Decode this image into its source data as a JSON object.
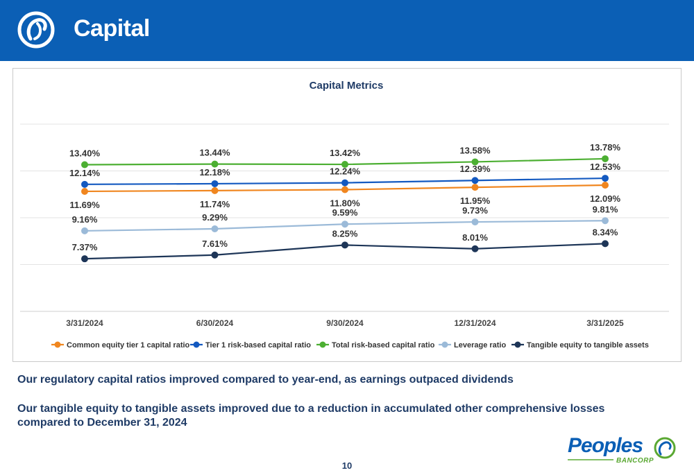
{
  "header": {
    "title": "Capital"
  },
  "chart_data": {
    "type": "line",
    "title": "Capital Metrics",
    "categories": [
      "3/31/2024",
      "6/30/2024",
      "9/30/2024",
      "12/31/2024",
      "3/31/2025"
    ],
    "ylim": [
      4,
      16
    ],
    "grid": true,
    "legend_position": "bottom",
    "series": [
      {
        "name": "Common equity tier 1 capital ratio",
        "color": "#f0861f",
        "values": [
          11.69,
          11.74,
          11.8,
          11.95,
          12.09
        ],
        "labels": [
          "11.69%",
          "11.74%",
          "11.80%",
          "11.95%",
          "12.09%"
        ],
        "label_pos": "below"
      },
      {
        "name": "Tier 1 risk-based capital ratio",
        "color": "#1359c0",
        "values": [
          12.14,
          12.18,
          12.24,
          12.39,
          12.53
        ],
        "labels": [
          "12.14%",
          "12.18%",
          "12.24%",
          "12.39%",
          "12.53%"
        ],
        "label_pos": "above"
      },
      {
        "name": "Total risk-based capital ratio",
        "color": "#4caf32",
        "values": [
          13.4,
          13.44,
          13.42,
          13.58,
          13.78
        ],
        "labels": [
          "13.40%",
          "13.44%",
          "13.42%",
          "13.58%",
          "13.78%"
        ],
        "label_pos": "above"
      },
      {
        "name": "Leverage ratio",
        "color": "#9bbad8",
        "values": [
          9.16,
          9.29,
          9.59,
          9.73,
          9.81
        ],
        "labels": [
          "9.16%",
          "9.29%",
          "9.59%",
          "9.73%",
          "9.81%"
        ],
        "label_pos": "above"
      },
      {
        "name": "Tangible equity to tangible assets",
        "color": "#1d3557",
        "values": [
          7.37,
          7.61,
          8.25,
          8.01,
          8.34
        ],
        "labels": [
          "7.37%",
          "7.61%",
          "8.25%",
          "8.01%",
          "8.34%"
        ],
        "label_pos": "above"
      }
    ]
  },
  "notes": [
    "Our regulatory capital ratios improved compared to year-end, as earnings outpaced dividends",
    "Our tangible equity to tangible assets improved due to a reduction in accumulated other comprehensive losses compared to December 31, 2024"
  ],
  "footer": {
    "logo_text": "Peoples",
    "logo_subtext": "BANCORP",
    "page_number": "10"
  },
  "colors": {
    "header_bg": "#0b5fb5",
    "text_dark": "#1f3b66",
    "logo_green": "#5aa832"
  }
}
